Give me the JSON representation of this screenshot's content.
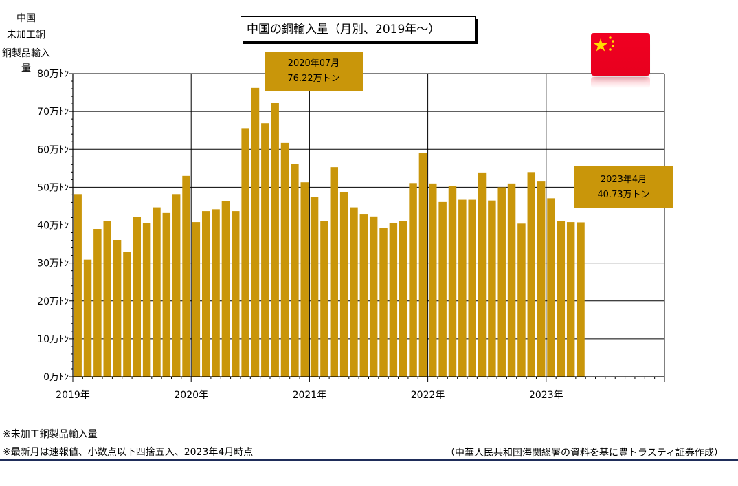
{
  "title": "中国の銅輸入量（月別、2019年～）",
  "ylabel_lines": [
    "中国",
    "未加工銅",
    "銅製品輸入量"
  ],
  "callouts": [
    {
      "line1": "2020年07月",
      "line2": "76.22万トン"
    },
    {
      "line1": "2023年4月",
      "line2": "40.73万トン"
    }
  ],
  "footnotes": {
    "note1": "※未加工銅製品輸入量",
    "note2": "※最新月は速報値、小数点以下四捨五入、2023年4月時点",
    "source": "（中華人民共和国海関総署の資料を基に豊トラスティ証券作成）"
  },
  "colors": {
    "bar": "#c9960a",
    "flag_red": "#ff0022",
    "flag_star": "#ffde00",
    "rule": "#1f2d5a"
  },
  "flag_icon": "china-flag-icon",
  "chart_data": {
    "type": "bar",
    "title": "中国の銅輸入量（月別、2019年～）",
    "ylabel": "中国 未加工銅 銅製品輸入量",
    "ylim": [
      0,
      80
    ],
    "yticks": [
      "0万ﾄﾝ",
      "10万ﾄﾝ",
      "20万ﾄﾝ",
      "30万ﾄﾝ",
      "40万ﾄﾝ",
      "50万ﾄﾝ",
      "60万ﾄﾝ",
      "70万ﾄﾝ",
      "80万ﾄﾝ"
    ],
    "xtick_labels": [
      "2019年",
      "2020年",
      "2021年",
      "2022年",
      "2023年"
    ],
    "x_slots": 60,
    "grid": true,
    "categories": [
      "2019-01",
      "2019-02",
      "2019-03",
      "2019-04",
      "2019-05",
      "2019-06",
      "2019-07",
      "2019-08",
      "2019-09",
      "2019-10",
      "2019-11",
      "2019-12",
      "2020-01",
      "2020-02",
      "2020-03",
      "2020-04",
      "2020-05",
      "2020-06",
      "2020-07",
      "2020-08",
      "2020-09",
      "2020-10",
      "2020-11",
      "2020-12",
      "2021-01",
      "2021-02",
      "2021-03",
      "2021-04",
      "2021-05",
      "2021-06",
      "2021-07",
      "2021-08",
      "2021-09",
      "2021-10",
      "2021-11",
      "2021-12",
      "2022-01",
      "2022-02",
      "2022-03",
      "2022-04",
      "2022-05",
      "2022-06",
      "2022-07",
      "2022-08",
      "2022-09",
      "2022-10",
      "2022-11",
      "2022-12",
      "2023-01",
      "2023-02",
      "2023-03",
      "2023-04"
    ],
    "values": [
      48.2,
      30.9,
      39.0,
      41.0,
      36.1,
      33.0,
      42.1,
      40.5,
      44.7,
      43.2,
      48.2,
      53.0,
      40.8,
      43.7,
      44.2,
      46.3,
      43.7,
      65.6,
      76.22,
      66.9,
      72.2,
      61.7,
      56.2,
      51.3,
      47.5,
      41.0,
      55.3,
      48.8,
      44.7,
      42.8,
      42.3,
      39.3,
      40.5,
      41.1,
      51.1,
      59.0,
      51.0,
      46.1,
      50.4,
      46.7,
      46.7,
      53.9,
      46.5,
      50.0,
      51.0,
      40.4,
      54.0,
      51.5,
      47.1,
      41.0,
      40.8,
      40.73
    ]
  }
}
